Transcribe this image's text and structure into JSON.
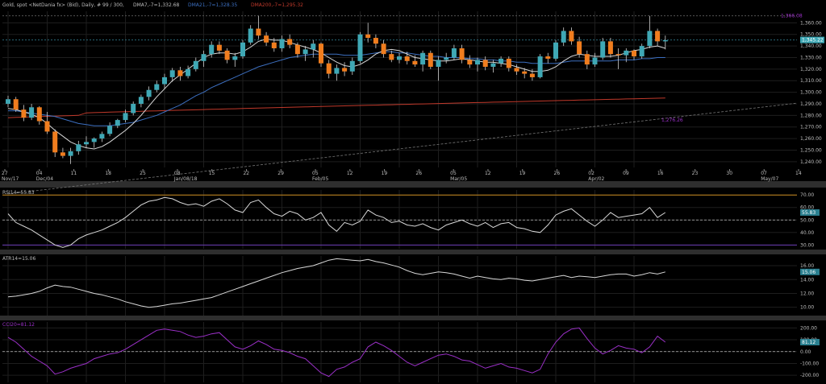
{
  "header": {
    "instrument": "Gold, spot <NetDania fx> (Bid), Daily, # 99 / 300,",
    "dma7": "DMA7,-7=1,332.68",
    "dma21": "DMA21,-7=1,328.35",
    "dma200": "DMA200,-7=1,295.32"
  },
  "colors": {
    "up": "#3fa8b5",
    "down": "#f07d1e",
    "dma7": "#d8d8d8",
    "dma21": "#3c6fc0",
    "dma200": "#c0392b",
    "cci": "#9b30c8",
    "grid": "#1e1e1e",
    "panel_sep": "#3a3a3a"
  },
  "price_panel": {
    "y_ticks": [
      "1,360.00",
      "1,350.00",
      "1,340.00",
      "1,330.00",
      "1,320.00",
      "1,310.00",
      "1,300.00",
      "1,290.00",
      "1,280.00",
      "1,270.00",
      "1,260.00",
      "1,250.00",
      "1,240.00"
    ],
    "high_label": "1,366.08",
    "last_label": "1,345.22",
    "trend_label": "1,276.26"
  },
  "x_axis": {
    "ticks": [
      "27",
      "04",
      "11",
      "18",
      "25",
      "08",
      "15",
      "22",
      "29",
      "05",
      "12",
      "19",
      "26",
      "05",
      "12",
      "19",
      "26",
      "02",
      "09",
      "16",
      "23",
      "30",
      "07",
      "14"
    ],
    "months": [
      "Nov/17",
      "Dec/04",
      "Jan/08/18",
      "Feb/05",
      "Mar/05",
      "Apr/02",
      "May/07"
    ]
  },
  "rsi_panel": {
    "label": "RSI14=55.83",
    "value_box": "55.83",
    "ticks": [
      "70.00",
      "60.00",
      "50.00",
      "40.00",
      "30.00"
    ]
  },
  "atr_panel": {
    "label": "ATR14=15.06",
    "value_box": "15.06",
    "ticks": [
      "16.00",
      "14.00",
      "12.00",
      "10.00"
    ]
  },
  "cci_panel": {
    "label": "CCI20=81.12",
    "value_box": "81.12",
    "ticks": [
      "200.00",
      "100.00",
      "0.00",
      "-100.00",
      "-200.00"
    ]
  },
  "chart_data": {
    "type": "candlestick",
    "title": "Gold, spot <NetDania fx> (Bid), Daily, # 99 / 300",
    "ylim": [
      1235,
      1370
    ],
    "indicator_legend": [
      "DMA7,-7=1,332.68",
      "DMA21,-7=1,328.35",
      "DMA200,-7=1,295.32"
    ],
    "candles": [
      {
        "o": 1290,
        "h": 1297,
        "l": 1287,
        "c": 1294
      },
      {
        "o": 1294,
        "h": 1296,
        "l": 1283,
        "c": 1285
      },
      {
        "o": 1285,
        "h": 1289,
        "l": 1275,
        "c": 1278
      },
      {
        "o": 1278,
        "h": 1290,
        "l": 1276,
        "c": 1287
      },
      {
        "o": 1287,
        "h": 1288,
        "l": 1272,
        "c": 1275
      },
      {
        "o": 1275,
        "h": 1283,
        "l": 1264,
        "c": 1266
      },
      {
        "o": 1266,
        "h": 1268,
        "l": 1244,
        "c": 1248
      },
      {
        "o": 1248,
        "h": 1252,
        "l": 1243,
        "c": 1245
      },
      {
        "o": 1245,
        "h": 1252,
        "l": 1238,
        "c": 1249
      },
      {
        "o": 1249,
        "h": 1258,
        "l": 1246,
        "c": 1255
      },
      {
        "o": 1255,
        "h": 1262,
        "l": 1252,
        "c": 1257
      },
      {
        "o": 1257,
        "h": 1261,
        "l": 1252,
        "c": 1260
      },
      {
        "o": 1260,
        "h": 1266,
        "l": 1257,
        "c": 1264
      },
      {
        "o": 1264,
        "h": 1274,
        "l": 1262,
        "c": 1271
      },
      {
        "o": 1271,
        "h": 1277,
        "l": 1269,
        "c": 1276
      },
      {
        "o": 1276,
        "h": 1285,
        "l": 1274,
        "c": 1282
      },
      {
        "o": 1282,
        "h": 1292,
        "l": 1280,
        "c": 1290
      },
      {
        "o": 1290,
        "h": 1298,
        "l": 1287,
        "c": 1296
      },
      {
        "o": 1296,
        "h": 1305,
        "l": 1293,
        "c": 1302
      },
      {
        "o": 1302,
        "h": 1310,
        "l": 1300,
        "c": 1307
      },
      {
        "o": 1307,
        "h": 1316,
        "l": 1303,
        "c": 1313
      },
      {
        "o": 1313,
        "h": 1321,
        "l": 1309,
        "c": 1319
      },
      {
        "o": 1319,
        "h": 1322,
        "l": 1310,
        "c": 1314
      },
      {
        "o": 1314,
        "h": 1323,
        "l": 1312,
        "c": 1320
      },
      {
        "o": 1320,
        "h": 1330,
        "l": 1318,
        "c": 1327
      },
      {
        "o": 1327,
        "h": 1336,
        "l": 1322,
        "c": 1333
      },
      {
        "o": 1333,
        "h": 1344,
        "l": 1330,
        "c": 1341
      },
      {
        "o": 1341,
        "h": 1344,
        "l": 1333,
        "c": 1336
      },
      {
        "o": 1336,
        "h": 1338,
        "l": 1325,
        "c": 1328
      },
      {
        "o": 1328,
        "h": 1334,
        "l": 1322,
        "c": 1331
      },
      {
        "o": 1331,
        "h": 1345,
        "l": 1329,
        "c": 1343
      },
      {
        "o": 1343,
        "h": 1358,
        "l": 1341,
        "c": 1355
      },
      {
        "o": 1355,
        "h": 1366,
        "l": 1346,
        "c": 1349
      },
      {
        "o": 1349,
        "h": 1352,
        "l": 1340,
        "c": 1343
      },
      {
        "o": 1343,
        "h": 1347,
        "l": 1335,
        "c": 1338
      },
      {
        "o": 1338,
        "h": 1349,
        "l": 1335,
        "c": 1346
      },
      {
        "o": 1346,
        "h": 1350,
        "l": 1338,
        "c": 1341
      },
      {
        "o": 1341,
        "h": 1343,
        "l": 1330,
        "c": 1333
      },
      {
        "o": 1333,
        "h": 1340,
        "l": 1327,
        "c": 1337
      },
      {
        "o": 1337,
        "h": 1345,
        "l": 1330,
        "c": 1342
      },
      {
        "o": 1342,
        "h": 1343,
        "l": 1322,
        "c": 1325
      },
      {
        "o": 1325,
        "h": 1328,
        "l": 1312,
        "c": 1316
      },
      {
        "o": 1316,
        "h": 1324,
        "l": 1310,
        "c": 1321
      },
      {
        "o": 1321,
        "h": 1326,
        "l": 1314,
        "c": 1318
      },
      {
        "o": 1318,
        "h": 1330,
        "l": 1315,
        "c": 1327
      },
      {
        "o": 1327,
        "h": 1352,
        "l": 1325,
        "c": 1350
      },
      {
        "o": 1350,
        "h": 1360,
        "l": 1343,
        "c": 1347
      },
      {
        "o": 1347,
        "h": 1350,
        "l": 1338,
        "c": 1342
      },
      {
        "o": 1342,
        "h": 1345,
        "l": 1330,
        "c": 1333
      },
      {
        "o": 1333,
        "h": 1336,
        "l": 1326,
        "c": 1328
      },
      {
        "o": 1328,
        "h": 1334,
        "l": 1325,
        "c": 1331
      },
      {
        "o": 1331,
        "h": 1335,
        "l": 1324,
        "c": 1327
      },
      {
        "o": 1327,
        "h": 1332,
        "l": 1322,
        "c": 1324
      },
      {
        "o": 1324,
        "h": 1336,
        "l": 1318,
        "c": 1334
      },
      {
        "o": 1334,
        "h": 1336,
        "l": 1320,
        "c": 1322
      },
      {
        "o": 1322,
        "h": 1331,
        "l": 1310,
        "c": 1328
      },
      {
        "o": 1328,
        "h": 1334,
        "l": 1325,
        "c": 1330
      },
      {
        "o": 1330,
        "h": 1341,
        "l": 1328,
        "c": 1338
      },
      {
        "o": 1338,
        "h": 1341,
        "l": 1325,
        "c": 1328
      },
      {
        "o": 1328,
        "h": 1332,
        "l": 1321,
        "c": 1324
      },
      {
        "o": 1324,
        "h": 1330,
        "l": 1318,
        "c": 1328
      },
      {
        "o": 1328,
        "h": 1331,
        "l": 1319,
        "c": 1322
      },
      {
        "o": 1322,
        "h": 1328,
        "l": 1317,
        "c": 1325
      },
      {
        "o": 1325,
        "h": 1331,
        "l": 1322,
        "c": 1329
      },
      {
        "o": 1329,
        "h": 1331,
        "l": 1318,
        "c": 1321
      },
      {
        "o": 1321,
        "h": 1324,
        "l": 1315,
        "c": 1318
      },
      {
        "o": 1318,
        "h": 1321,
        "l": 1312,
        "c": 1316
      },
      {
        "o": 1316,
        "h": 1320,
        "l": 1310,
        "c": 1313
      },
      {
        "o": 1313,
        "h": 1333,
        "l": 1312,
        "c": 1331
      },
      {
        "o": 1331,
        "h": 1334,
        "l": 1325,
        "c": 1329
      },
      {
        "o": 1329,
        "h": 1345,
        "l": 1327,
        "c": 1343
      },
      {
        "o": 1343,
        "h": 1356,
        "l": 1340,
        "c": 1353
      },
      {
        "o": 1353,
        "h": 1356,
        "l": 1341,
        "c": 1344
      },
      {
        "o": 1344,
        "h": 1348,
        "l": 1330,
        "c": 1333
      },
      {
        "o": 1333,
        "h": 1336,
        "l": 1320,
        "c": 1324
      },
      {
        "o": 1324,
        "h": 1334,
        "l": 1322,
        "c": 1330
      },
      {
        "o": 1330,
        "h": 1347,
        "l": 1328,
        "c": 1344
      },
      {
        "o": 1344,
        "h": 1347,
        "l": 1330,
        "c": 1333
      },
      {
        "o": 1333,
        "h": 1338,
        "l": 1320,
        "c": 1332
      },
      {
        "o": 1332,
        "h": 1338,
        "l": 1326,
        "c": 1336
      },
      {
        "o": 1336,
        "h": 1337,
        "l": 1328,
        "c": 1331
      },
      {
        "o": 1331,
        "h": 1342,
        "l": 1329,
        "c": 1340
      },
      {
        "o": 1340,
        "h": 1366,
        "l": 1338,
        "c": 1353
      },
      {
        "o": 1353,
        "h": 1355,
        "l": 1340,
        "c": 1344
      },
      {
        "o": 1344,
        "h": 1349,
        "l": 1337,
        "c": 1345
      }
    ],
    "dma7": [
      1286,
      1285,
      1283,
      1281,
      1278,
      1273,
      1267,
      1262,
      1257,
      1254,
      1252,
      1251,
      1253,
      1257,
      1262,
      1267,
      1273,
      1280,
      1288,
      1296,
      1303,
      1310,
      1315,
      1320,
      1325,
      1330,
      1333,
      1334,
      1334,
      1333,
      1335,
      1339,
      1344,
      1346,
      1345,
      1345,
      1343,
      1341,
      1339,
      1337,
      1334,
      1330,
      1326,
      1323,
      1322,
      1324,
      1328,
      1333,
      1336,
      1337,
      1336,
      1333,
      1330,
      1329,
      1328,
      1327,
      1327,
      1328,
      1329,
      1328,
      1327,
      1326,
      1326,
      1325,
      1324,
      1322,
      1320,
      1318,
      1318,
      1319,
      1322,
      1327,
      1331,
      1333,
      1332,
      1331,
      1331,
      1331,
      1332,
      1334,
      1336,
      1337,
      1339,
      1340,
      1338
    ],
    "dma21": [
      1284,
      1284,
      1283,
      1282,
      1281,
      1280,
      1279,
      1277,
      1275,
      1273,
      1272,
      1271,
      1271,
      1271,
      1272,
      1273,
      1274,
      1276,
      1278,
      1280,
      1283,
      1286,
      1289,
      1293,
      1297,
      1300,
      1304,
      1307,
      1310,
      1313,
      1316,
      1319,
      1322,
      1324,
      1326,
      1328,
      1330,
      1331,
      1332,
      1333,
      1333,
      1333,
      1333,
      1332,
      1332,
      1332,
      1333,
      1334,
      1335,
      1335,
      1334,
      1334,
      1333,
      1332,
      1331,
      1331,
      1330,
      1330,
      1330,
      1329,
      1329,
      1328,
      1328,
      1327,
      1327,
      1326,
      1326,
      1325,
      1325,
      1325,
      1325,
      1326,
      1327,
      1327,
      1327,
      1327,
      1327,
      1327,
      1328,
      1328,
      1328,
      1329,
      1329,
      1330,
      1330
    ],
    "dma200_range": [
      1280,
      1295
    ],
    "trendline": {
      "from": 1240,
      "to": 1285
    },
    "rsi": [
      55,
      48,
      45,
      42,
      38,
      34,
      30,
      28,
      30,
      35,
      38,
      40,
      42,
      45,
      48,
      52,
      57,
      62,
      65,
      66,
      68,
      67,
      64,
      62,
      63,
      61,
      65,
      67,
      63,
      58,
      56,
      64,
      66,
      60,
      55,
      53,
      57,
      55,
      50,
      52,
      56,
      46,
      41,
      48,
      46,
      49,
      58,
      54,
      52,
      48,
      49,
      46,
      45,
      47,
      44,
      42,
      46,
      48,
      50,
      47,
      45,
      48,
      44,
      47,
      48,
      44,
      43,
      41,
      40,
      46,
      54,
      57,
      59,
      54,
      49,
      45,
      50,
      56,
      52,
      53,
      54,
      55,
      60,
      52,
      56
    ],
    "atr": [
      11.5,
      11.6,
      11.8,
      12.0,
      12.3,
      12.8,
      13.2,
      13.0,
      12.9,
      12.6,
      12.3,
      12.0,
      11.8,
      11.5,
      11.2,
      10.8,
      10.5,
      10.2,
      10.0,
      10.1,
      10.3,
      10.5,
      10.6,
      10.8,
      11.0,
      11.2,
      11.4,
      11.8,
      12.2,
      12.6,
      13.0,
      13.4,
      13.8,
      14.2,
      14.6,
      15.0,
      15.3,
      15.6,
      15.8,
      16.0,
      16.4,
      16.8,
      17.0,
      16.9,
      16.8,
      16.7,
      16.9,
      16.6,
      16.4,
      16.1,
      15.8,
      15.3,
      14.9,
      14.7,
      14.9,
      15.1,
      15.0,
      14.8,
      14.5,
      14.2,
      14.5,
      14.3,
      14.1,
      14.0,
      14.2,
      14.1,
      13.9,
      13.8,
      14.0,
      14.2,
      14.4,
      14.6,
      14.3,
      14.5,
      14.4,
      14.3,
      14.5,
      14.7,
      14.8,
      14.8,
      14.5,
      14.7,
      15.0,
      14.8,
      15.1
    ],
    "cci": [
      120,
      80,
      20,
      -40,
      -80,
      -120,
      -190,
      -170,
      -140,
      -120,
      -100,
      -60,
      -40,
      -20,
      -10,
      20,
      60,
      100,
      140,
      180,
      190,
      180,
      170,
      140,
      120,
      130,
      150,
      160,
      100,
      40,
      20,
      50,
      90,
      60,
      20,
      10,
      -10,
      -40,
      -60,
      -120,
      -180,
      -210,
      -150,
      -130,
      -90,
      -60,
      40,
      80,
      50,
      10,
      -40,
      -90,
      -120,
      -90,
      -60,
      -30,
      -20,
      -40,
      -70,
      -80,
      -110,
      -140,
      -120,
      -100,
      -130,
      -140,
      -160,
      -180,
      -150,
      -20,
      80,
      150,
      190,
      200,
      110,
      30,
      -20,
      10,
      50,
      30,
      20,
      -10,
      40,
      130,
      80
    ]
  }
}
